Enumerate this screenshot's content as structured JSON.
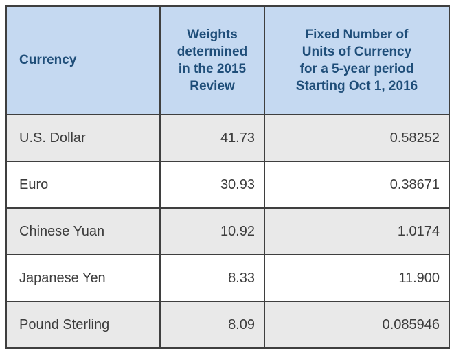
{
  "chart_data": {
    "type": "table",
    "title": "",
    "columns": [
      "Currency",
      "Weights determined in the 2015 Review",
      "Fixed Number of Units of Currency for a 5-year period Starting Oct 1, 2016"
    ],
    "rows": [
      [
        "U.S. Dollar",
        41.73,
        "0.58252"
      ],
      [
        "Euro",
        30.93,
        "0.38671"
      ],
      [
        "Chinese Yuan",
        10.92,
        "1.0174"
      ],
      [
        "Japanese Yen",
        8.33,
        "11.900"
      ],
      [
        "Pound Sterling",
        8.09,
        "0.085946"
      ]
    ]
  },
  "table": {
    "columns": [
      {
        "label": "Currency"
      },
      {
        "label": "Weights\ndetermined\nin the 2015\nReview"
      },
      {
        "label": "Fixed Number of\nUnits of Currency\nfor a 5-year period\nStarting Oct 1, 2016"
      }
    ],
    "rows": [
      {
        "currency": "U.S. Dollar",
        "weight": "41.73",
        "fixed_units": "0.58252"
      },
      {
        "currency": "Euro",
        "weight": "30.93",
        "fixed_units": "0.38671"
      },
      {
        "currency": "Chinese Yuan",
        "weight": "10.92",
        "fixed_units": "1.0174"
      },
      {
        "currency": "Japanese Yen",
        "weight": "8.33",
        "fixed_units": "11.900"
      },
      {
        "currency": "Pound Sterling",
        "weight": "8.09",
        "fixed_units": "0.085946"
      }
    ]
  },
  "colors": {
    "header_bg": "#c5d9f1",
    "header_text": "#1f4e79",
    "row_alt_bg": "#e9e9e9",
    "row_bg": "#ffffff",
    "body_text": "#3c3c3c",
    "border": "#3f3f3f"
  }
}
